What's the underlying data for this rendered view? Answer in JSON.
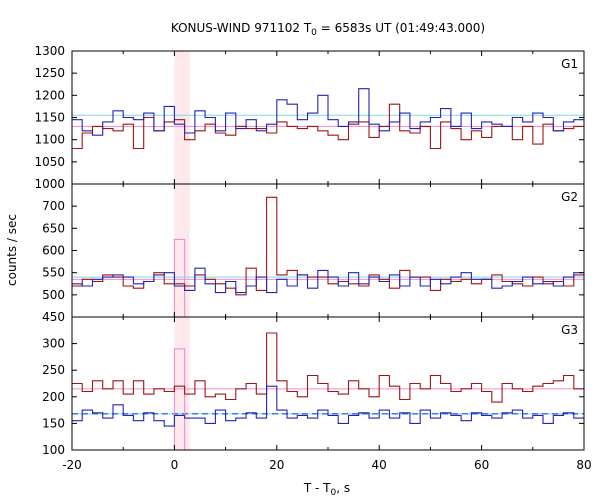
{
  "chart_data": {
    "type": "line",
    "title_main": "KONUS-WIND 971102 T",
    "title_sub": "0",
    "title_rest": " = 6583s UT (01:49:43.000)",
    "xlabel_main": "T - T",
    "xlabel_sub": "0",
    "xlabel_rest": ", s",
    "ylabel": "counts / sec",
    "xlim": [
      -20,
      80
    ],
    "xticks": [
      -20,
      0,
      20,
      40,
      60,
      80
    ],
    "highlight_band": [
      0,
      3
    ],
    "bin_width": 2,
    "colors": {
      "red": "#a01515",
      "blue": "#2323b8",
      "pink": "#ef8fcf",
      "cyan": "#80d8e8",
      "dashed_blue": "#1a55c8",
      "band": "#fde8ec"
    },
    "panels": [
      {
        "label": "G1",
        "ylim": [
          1000,
          1300
        ],
        "yticks": [
          1000,
          1050,
          1100,
          1150,
          1200,
          1250,
          1300
        ],
        "show_bottom_tick": true,
        "fit_pink": 1130,
        "fit_cyan": 1155,
        "series": [
          {
            "name": "red",
            "x0": -20,
            "values": [
              1080,
              1115,
              1130,
              1125,
              1120,
              1135,
              1080,
              1150,
              1120,
              1140,
              1145,
              1100,
              1120,
              1135,
              1115,
              1110,
              1130,
              1125,
              1125,
              1115,
              1140,
              1130,
              1125,
              1130,
              1120,
              1110,
              1100,
              1135,
              1140,
              1105,
              1130,
              1180,
              1120,
              1115,
              1130,
              1080,
              1140,
              1125,
              1100,
              1120,
              1105,
              1130,
              1130,
              1100,
              1130,
              1090,
              1135,
              1120,
              1125,
              1130
            ]
          },
          {
            "name": "blue",
            "x0": -20,
            "values": [
              1145,
              1120,
              1110,
              1140,
              1165,
              1150,
              1145,
              1160,
              1120,
              1175,
              1135,
              1115,
              1165,
              1150,
              1120,
              1160,
              1125,
              1145,
              1120,
              1135,
              1190,
              1180,
              1145,
              1160,
              1200,
              1145,
              1130,
              1140,
              1215,
              1135,
              1120,
              1140,
              1160,
              1125,
              1140,
              1150,
              1170,
              1130,
              1160,
              1125,
              1140,
              1135,
              1130,
              1150,
              1140,
              1160,
              1150,
              1120,
              1140,
              1145
            ]
          }
        ]
      },
      {
        "label": "G2",
        "ylim": [
          450,
          750
        ],
        "yticks": [
          450,
          500,
          550,
          600,
          650,
          700
        ],
        "show_bottom_tick": true,
        "fit_pink": 535,
        "fit_cyan": 540,
        "series": [
          {
            "name": "red",
            "x0": -20,
            "values": [
              520,
              535,
              530,
              545,
              540,
              520,
              515,
              530,
              550,
              525,
              525,
              520,
              545,
              535,
              525,
              515,
              500,
              560,
              510,
              720,
              545,
              555,
              545,
              540,
              540,
              525,
              530,
              525,
              520,
              545,
              535,
              515,
              555,
              540,
              540,
              510,
              535,
              530,
              535,
              525,
              535,
              545,
              530,
              525,
              520,
              540,
              525,
              530,
              520,
              545
            ]
          },
          {
            "name": "blue",
            "x0": -20,
            "values": [
              525,
              520,
              535,
              540,
              545,
              540,
              525,
              530,
              545,
              550,
              520,
              510,
              560,
              525,
              505,
              530,
              505,
              520,
              540,
              505,
              535,
              520,
              545,
              515,
              555,
              540,
              520,
              550,
              525,
              540,
              530,
              545,
              520,
              540,
              520,
              535,
              525,
              540,
              550,
              535,
              535,
              515,
              520,
              530,
              540,
              525,
              530,
              520,
              540,
              550
            ]
          },
          {
            "name": "pink",
            "x0": 0,
            "values": [
              625
            ]
          }
        ]
      },
      {
        "label": "G3",
        "ylim": [
          100,
          350
        ],
        "yticks": [
          100,
          150,
          200,
          250,
          300
        ],
        "show_bottom_tick": true,
        "fit_pink": 215,
        "fit_cyan": 168,
        "fit_dashed": 168,
        "series": [
          {
            "name": "red",
            "x0": -20,
            "values": [
              225,
              210,
              230,
              215,
              230,
              205,
              230,
              205,
              215,
              210,
              220,
              205,
              230,
              200,
              205,
              195,
              215,
              225,
              205,
              320,
              230,
              210,
              200,
              240,
              225,
              210,
              205,
              230,
              215,
              200,
              240,
              220,
              195,
              225,
              215,
              240,
              225,
              210,
              215,
              225,
              210,
              190,
              225,
              215,
              210,
              220,
              225,
              230,
              240,
              215
            ]
          },
          {
            "name": "blue",
            "x0": -20,
            "values": [
              155,
              175,
              170,
              160,
              185,
              165,
              155,
              170,
              155,
              145,
              165,
              160,
              160,
              150,
              175,
              155,
              160,
              170,
              160,
              220,
              175,
              160,
              165,
              160,
              175,
              165,
              150,
              165,
              170,
              160,
              175,
              160,
              170,
              150,
              175,
              160,
              170,
              165,
              155,
              170,
              165,
              160,
              170,
              175,
              160,
              165,
              150,
              165,
              170,
              160
            ]
          },
          {
            "name": "pink",
            "x0": 0,
            "values": [
              290
            ]
          }
        ]
      }
    ]
  }
}
